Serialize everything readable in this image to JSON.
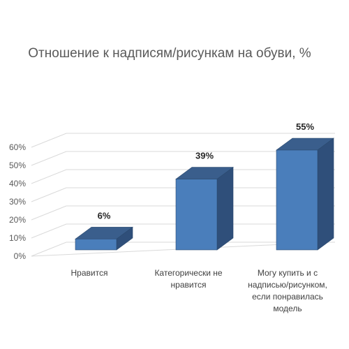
{
  "chart_data": {
    "type": "bar",
    "title": "Отношение к надписям/рисункам на обуви, %",
    "categories": [
      [
        "Нравится"
      ],
      [
        "Категорически не",
        "нравится"
      ],
      [
        "Могу купить и с",
        "надписью/рисунком,",
        "если понравилась",
        "модель"
      ]
    ],
    "values": [
      6,
      39,
      55
    ],
    "data_labels": [
      "6%",
      "39%",
      "55%"
    ],
    "y_ticks": [
      "0%",
      "10%",
      "20%",
      "30%",
      "40%",
      "50%",
      "60%"
    ],
    "ylim": [
      0,
      60
    ],
    "grid": true,
    "three_d": true,
    "colors": {
      "front": "#4a7ebb",
      "side": "#2f4f7a",
      "top": "#3a5e8c",
      "edge": "#2b4a6f"
    }
  }
}
